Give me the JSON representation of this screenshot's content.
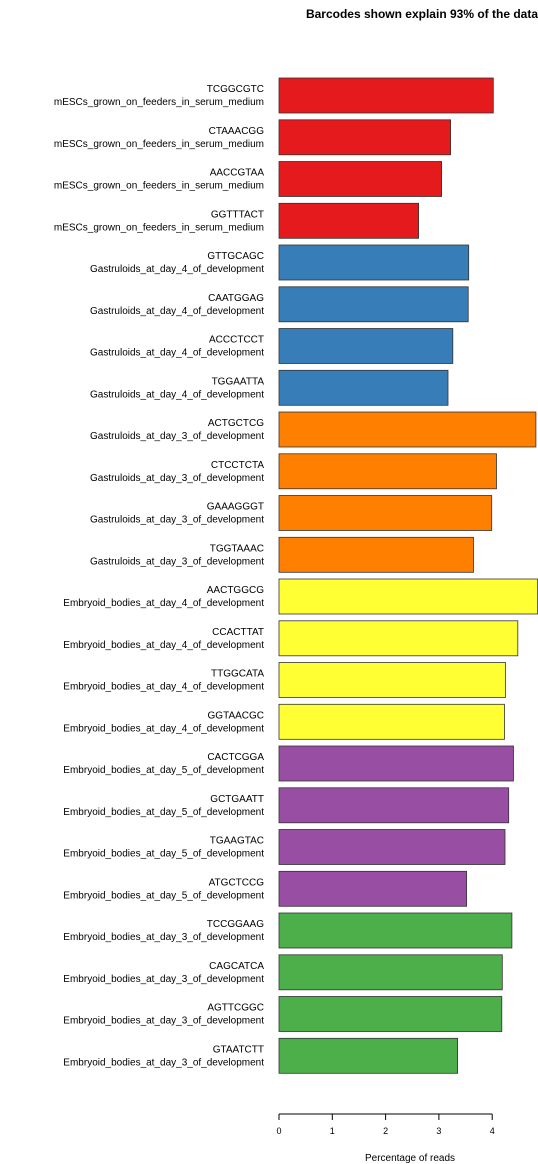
{
  "chart_data": {
    "type": "bar",
    "orientation": "horizontal",
    "title": "Barcodes shown explain 93% of the data",
    "xlabel": "Percentage of reads",
    "ylabel": "",
    "xlim": [
      0,
      4.9
    ],
    "xticks": [
      "0",
      "1",
      "2",
      "3",
      "4"
    ],
    "grid": false,
    "groups": [
      {
        "name": "mESCs_grown_on_feeders_in_serum_medium",
        "color": "#e41a1c"
      },
      {
        "name": "Gastruloids_at_day_4_of_development",
        "color": "#377eb8"
      },
      {
        "name": "Gastruloids_at_day_3_of_development",
        "color": "#ff7f00"
      },
      {
        "name": "Embryoid_bodies_at_day_4_of_development",
        "color": "#ffff33"
      },
      {
        "name": "Embryoid_bodies_at_day_5_of_development",
        "color": "#984ea3"
      },
      {
        "name": "Embryoid_bodies_at_day_3_of_development",
        "color": "#4daf4a"
      }
    ],
    "bars": [
      {
        "barcode": "TCGGCGTC",
        "group": "mESCs_grown_on_feeders_in_serum_medium",
        "value": 4.02
      },
      {
        "barcode": "CTAAACGG",
        "group": "mESCs_grown_on_feeders_in_serum_medium",
        "value": 3.22
      },
      {
        "barcode": "AACCGTAA",
        "group": "mESCs_grown_on_feeders_in_serum_medium",
        "value": 3.05
      },
      {
        "barcode": "GGTTTACT",
        "group": "mESCs_grown_on_feeders_in_serum_medium",
        "value": 2.62
      },
      {
        "barcode": "GTTGCAGC",
        "group": "Gastruloids_at_day_4_of_development",
        "value": 3.56
      },
      {
        "barcode": "CAATGGAG",
        "group": "Gastruloids_at_day_4_of_development",
        "value": 3.55
      },
      {
        "barcode": "ACCCTCCT",
        "group": "Gastruloids_at_day_4_of_development",
        "value": 3.26
      },
      {
        "barcode": "TGGAATTA",
        "group": "Gastruloids_at_day_4_of_development",
        "value": 3.17
      },
      {
        "barcode": "ACTGCTCG",
        "group": "Gastruloids_at_day_3_of_development",
        "value": 4.82
      },
      {
        "barcode": "CTCCTCTA",
        "group": "Gastruloids_at_day_3_of_development",
        "value": 4.08
      },
      {
        "barcode": "GAAAGGGT",
        "group": "Gastruloids_at_day_3_of_development",
        "value": 3.99
      },
      {
        "barcode": "TGGTAAAC",
        "group": "Gastruloids_at_day_3_of_development",
        "value": 3.65
      },
      {
        "barcode": "AACTGGCG",
        "group": "Embryoid_bodies_at_day_4_of_development",
        "value": 4.9
      },
      {
        "barcode": "CCACTTAT",
        "group": "Embryoid_bodies_at_day_4_of_development",
        "value": 4.48
      },
      {
        "barcode": "TTGGCATA",
        "group": "Embryoid_bodies_at_day_4_of_development",
        "value": 4.25
      },
      {
        "barcode": "GGTAACGC",
        "group": "Embryoid_bodies_at_day_4_of_development",
        "value": 4.23
      },
      {
        "barcode": "CACTCGGA",
        "group": "Embryoid_bodies_at_day_5_of_development",
        "value": 4.4
      },
      {
        "barcode": "GCTGAATT",
        "group": "Embryoid_bodies_at_day_5_of_development",
        "value": 4.31
      },
      {
        "barcode": "TGAAGTAC",
        "group": "Embryoid_bodies_at_day_5_of_development",
        "value": 4.24
      },
      {
        "barcode": "ATGCTCCG",
        "group": "Embryoid_bodies_at_day_5_of_development",
        "value": 3.52
      },
      {
        "barcode": "TCCGGAAG",
        "group": "Embryoid_bodies_at_day_3_of_development",
        "value": 4.37
      },
      {
        "barcode": "CAGCATCA",
        "group": "Embryoid_bodies_at_day_3_of_development",
        "value": 4.19
      },
      {
        "barcode": "AGTTCGGC",
        "group": "Embryoid_bodies_at_day_3_of_development",
        "value": 4.18
      },
      {
        "barcode": "GTAATCTT",
        "group": "Embryoid_bodies_at_day_3_of_development",
        "value": 3.35
      }
    ]
  }
}
